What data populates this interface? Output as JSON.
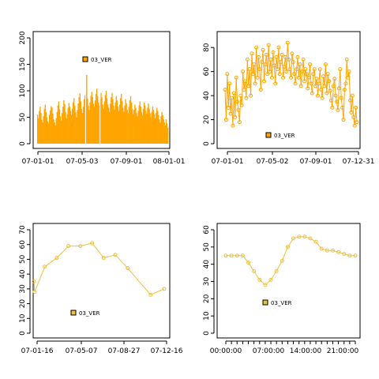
{
  "chart_data": [
    {
      "type": "bar",
      "legend": "03_VER",
      "color": "#ffa500",
      "x_tick_labels": [
        "07-01-01",
        "07-05-03",
        "07-09-01",
        "08-01-01"
      ],
      "y_ticks": [
        0,
        50,
        100,
        150,
        200
      ],
      "ylim": [
        0,
        200
      ],
      "x_start": "2007-01-01",
      "x_end": "2008-01-01",
      "values": [
        55,
        48,
        62,
        70,
        58,
        45,
        40,
        52,
        66,
        74,
        60,
        50,
        42,
        38,
        55,
        63,
        71,
        68,
        57,
        46,
        40,
        35,
        48,
        60,
        72,
        80,
        65,
        52,
        44,
        58,
        70,
        82,
        75,
        60,
        48,
        56,
        68,
        77,
        70,
        62,
        55,
        66,
        78,
        86,
        72,
        60,
        50,
        64,
        76,
        88,
        95,
        80,
        66,
        58,
        70,
        84,
        92,
        100,
        130,
        85,
        72,
        64,
        78,
        90,
        98,
        88,
        76,
        70,
        82,
        94,
        104,
        90,
        78,
        72,
        84,
        96,
        88,
        74,
        66,
        80,
        92,
        100,
        86,
        74,
        68,
        60,
        76,
        88,
        96,
        84,
        72,
        64,
        78,
        90,
        82,
        70,
        62,
        74,
        86,
        94,
        80,
        68,
        60,
        72,
        84,
        76,
        64,
        58,
        70,
        82,
        90,
        78,
        66,
        56,
        64,
        74,
        68,
        58,
        52,
        62,
        72,
        80,
        70,
        60,
        54,
        66,
        78,
        72,
        62,
        56,
        68,
        76,
        66,
        58,
        50,
        60,
        70,
        64,
        56,
        48,
        58,
        68,
        62,
        54,
        46,
        40,
        52,
        60,
        54,
        46,
        40,
        34,
        46,
        38,
        30
      ]
    },
    {
      "type": "line",
      "legend": "03_VER",
      "color": "#ffa500",
      "x_tick_labels": [
        "07-01-01",
        "07-05-02",
        "07-09-01",
        "07-12-31"
      ],
      "y_ticks": [
        0,
        20,
        40,
        60,
        80
      ],
      "ylim": [
        0,
        88
      ],
      "x_start": "2007-01-01",
      "x_end": "2007-12-31",
      "values": [
        45,
        20,
        58,
        30,
        50,
        25,
        38,
        15,
        42,
        22,
        55,
        35,
        28,
        18,
        40,
        32,
        60,
        45,
        52,
        38,
        70,
        48,
        62,
        40,
        75,
        58,
        66,
        50,
        80,
        55,
        72,
        62,
        45,
        68,
        78,
        52,
        66,
        74,
        58,
        82,
        60,
        70,
        55,
        76,
        65,
        50,
        72,
        62,
        80,
        58,
        68,
        74,
        55,
        64,
        72,
        60,
        84,
        70,
        62,
        55,
        75,
        68,
        58,
        50,
        62,
        72,
        55,
        66,
        48,
        60,
        70,
        52,
        62,
        58,
        46,
        55,
        66,
        50,
        42,
        58,
        62,
        48,
        54,
        40,
        50,
        62,
        45,
        38,
        56,
        48,
        66,
        42,
        58,
        52,
        44,
        36,
        30,
        48,
        54,
        40,
        35,
        28,
        46,
        62,
        38,
        30,
        20,
        45,
        50,
        70,
        55,
        60,
        36,
        26,
        40,
        22,
        15,
        30,
        18
      ]
    },
    {
      "type": "line",
      "legend": "03_VER",
      "color": "#f0c040",
      "x_tick_labels": [
        "07-01-16",
        "07-05-07",
        "07-08-27",
        "07-12-16"
      ],
      "y_ticks": [
        0,
        10,
        20,
        30,
        40,
        50,
        60,
        70
      ],
      "ylim": [
        0,
        70
      ],
      "x_start": "2007-01-01",
      "x_end": "2007-12-31",
      "points": [
        [
          "2007-01-03",
          35
        ],
        [
          "2007-01-05",
          28
        ],
        [
          "2007-02-01",
          45
        ],
        [
          "2007-03-05",
          51
        ],
        [
          "2007-04-05",
          59
        ],
        [
          "2007-05-07",
          59
        ],
        [
          "2007-06-07",
          61
        ],
        [
          "2007-07-08",
          51
        ],
        [
          "2007-08-08",
          53
        ],
        [
          "2007-09-10",
          44
        ],
        [
          "2007-11-10",
          26
        ],
        [
          "2007-12-16",
          30
        ]
      ]
    },
    {
      "type": "line",
      "legend": "03_VER",
      "color": "#f0c040",
      "x_tick_labels": [
        "00:00:00",
        "07:00:00",
        "14:00:00",
        "21:00:00"
      ],
      "y_ticks": [
        0,
        10,
        20,
        30,
        40,
        50,
        60
      ],
      "ylim": [
        0,
        60
      ],
      "hours": [
        0,
        1,
        2,
        3,
        4,
        5,
        6,
        7,
        8,
        9,
        10,
        11,
        12,
        13,
        14,
        15,
        16,
        17,
        18,
        19,
        20,
        21,
        22,
        23
      ],
      "values": [
        45,
        45,
        45,
        45,
        41,
        36,
        31,
        28,
        31,
        36,
        42,
        50,
        55,
        56,
        56,
        55,
        53,
        49,
        48,
        48,
        47,
        46,
        45,
        45
      ]
    }
  ]
}
